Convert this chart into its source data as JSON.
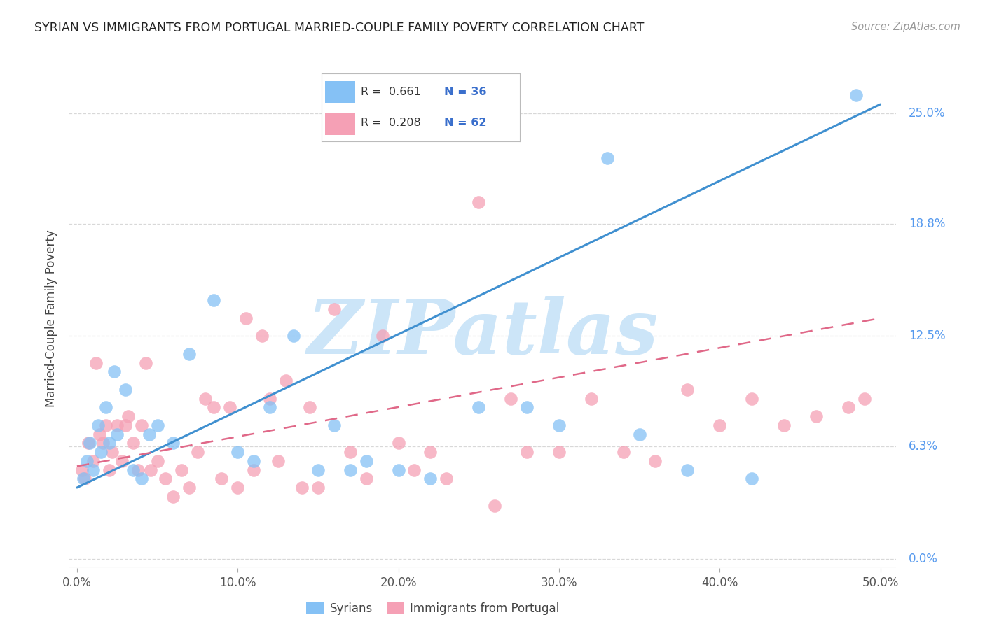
{
  "title": "SYRIAN VS IMMIGRANTS FROM PORTUGAL MARRIED-COUPLE FAMILY POVERTY CORRELATION CHART",
  "source": "Source: ZipAtlas.com",
  "ylabel": "Married-Couple Family Poverty",
  "xlim": [
    0.0,
    50.0
  ],
  "ylim": [
    0.0,
    27.0
  ],
  "ytick_vals": [
    0.0,
    6.3,
    12.5,
    18.8,
    25.0
  ],
  "ytick_labels": [
    "0.0%",
    "6.3%",
    "12.5%",
    "18.8%",
    "25.0%"
  ],
  "xtick_vals": [
    0.0,
    10.0,
    20.0,
    30.0,
    40.0,
    50.0
  ],
  "xtick_labels": [
    "0.0%",
    "10.0%",
    "20.0%",
    "30.0%",
    "40.0%",
    "50.0%"
  ],
  "syrians_R": 0.661,
  "syrians_N": 36,
  "portugal_R": 0.208,
  "portugal_N": 62,
  "blue_scatter": "#85c1f5",
  "pink_scatter": "#f5a0b5",
  "trend_blue": "#4090d0",
  "trend_pink": "#e06888",
  "axis_label_color": "#5599ee",
  "watermark": "ZIPatlas",
  "watermark_color": "#cce5f8",
  "blue_trend_x0": 0.0,
  "blue_trend_y0": 4.0,
  "blue_trend_x1": 50.0,
  "blue_trend_y1": 25.5,
  "pink_trend_x0": 0.0,
  "pink_trend_y0": 5.2,
  "pink_trend_x1": 50.0,
  "pink_trend_y1": 13.5,
  "syrians_x": [
    0.4,
    0.6,
    0.8,
    1.0,
    1.3,
    1.5,
    1.8,
    2.0,
    2.3,
    2.5,
    3.0,
    3.5,
    4.0,
    4.5,
    5.0,
    6.0,
    7.0,
    8.5,
    10.0,
    11.0,
    12.0,
    13.5,
    15.0,
    16.0,
    17.0,
    18.0,
    20.0,
    22.0,
    25.0,
    28.0,
    30.0,
    33.0,
    35.0,
    38.0,
    42.0,
    48.5
  ],
  "syrians_y": [
    4.5,
    5.5,
    6.5,
    5.0,
    7.5,
    6.0,
    8.5,
    6.5,
    10.5,
    7.0,
    9.5,
    5.0,
    4.5,
    7.0,
    7.5,
    6.5,
    11.5,
    14.5,
    6.0,
    5.5,
    8.5,
    12.5,
    5.0,
    7.5,
    5.0,
    5.5,
    5.0,
    4.5,
    8.5,
    8.5,
    7.5,
    22.5,
    7.0,
    5.0,
    4.5,
    26.0
  ],
  "portugal_x": [
    0.3,
    0.5,
    0.7,
    1.0,
    1.2,
    1.4,
    1.6,
    1.8,
    2.0,
    2.2,
    2.5,
    2.8,
    3.0,
    3.2,
    3.5,
    3.8,
    4.0,
    4.3,
    4.6,
    5.0,
    5.5,
    6.0,
    6.5,
    7.0,
    7.5,
    8.0,
    8.5,
    9.0,
    9.5,
    10.0,
    10.5,
    11.0,
    11.5,
    12.0,
    12.5,
    13.0,
    14.0,
    14.5,
    15.0,
    16.0,
    17.0,
    18.0,
    19.0,
    20.0,
    21.0,
    22.0,
    23.0,
    25.0,
    26.0,
    27.0,
    28.0,
    30.0,
    32.0,
    34.0,
    36.0,
    38.0,
    40.0,
    42.0,
    44.0,
    46.0,
    48.0,
    49.0
  ],
  "portugal_y": [
    5.0,
    4.5,
    6.5,
    5.5,
    11.0,
    7.0,
    6.5,
    7.5,
    5.0,
    6.0,
    7.5,
    5.5,
    7.5,
    8.0,
    6.5,
    5.0,
    7.5,
    11.0,
    5.0,
    5.5,
    4.5,
    3.5,
    5.0,
    4.0,
    6.0,
    9.0,
    8.5,
    4.5,
    8.5,
    4.0,
    13.5,
    5.0,
    12.5,
    9.0,
    5.5,
    10.0,
    4.0,
    8.5,
    4.0,
    14.0,
    6.0,
    4.5,
    12.5,
    6.5,
    5.0,
    6.0,
    4.5,
    20.0,
    3.0,
    9.0,
    6.0,
    6.0,
    9.0,
    6.0,
    5.5,
    9.5,
    7.5,
    9.0,
    7.5,
    8.0,
    8.5,
    9.0
  ]
}
